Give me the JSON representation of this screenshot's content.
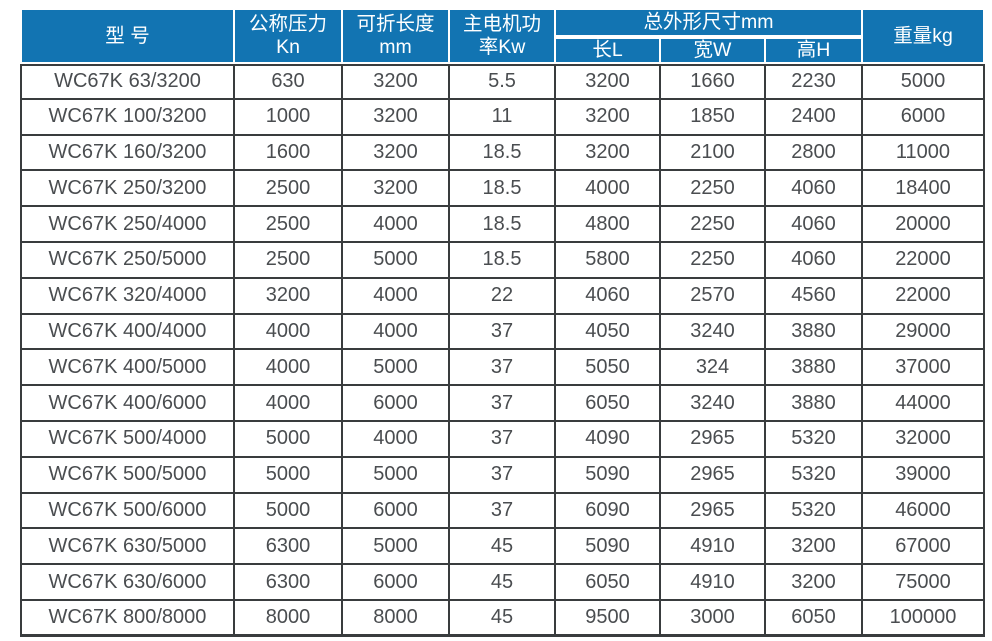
{
  "colors": {
    "header_bg": "#1274b2",
    "header_text": "#ffffff",
    "body_text": "#4a4d50",
    "grid_line": "#393c3e",
    "row_bg": "#ffffff"
  },
  "table": {
    "headers": {
      "model": "型 号",
      "pressure_line1": "公称压力",
      "pressure_line2": "Kn",
      "fold_length_line1": "可折长度",
      "fold_length_line2": "mm",
      "motor_power_line1": "主电机功",
      "motor_power_line2": "率Kw",
      "dimensions_group": "总外形尺寸mm",
      "dim_length": "长L",
      "dim_width": "宽W",
      "dim_height": "高H",
      "weight": "重量kg"
    },
    "column_keys": [
      "model",
      "pressure-kn",
      "fold-length-mm",
      "motor-power-kw",
      "dim-length-l",
      "dim-width-w",
      "dim-height-h",
      "weight-kg"
    ],
    "rows": [
      [
        "WC67K 63/3200",
        "630",
        "3200",
        "5.5",
        "3200",
        "1660",
        "2230",
        "5000"
      ],
      [
        "WC67K 100/3200",
        "1000",
        "3200",
        "11",
        "3200",
        "1850",
        "2400",
        "6000"
      ],
      [
        "WC67K 160/3200",
        "1600",
        "3200",
        "18.5",
        "3200",
        "2100",
        "2800",
        "11000"
      ],
      [
        "WC67K 250/3200",
        "2500",
        "3200",
        "18.5",
        "4000",
        "2250",
        "4060",
        "18400"
      ],
      [
        "WC67K 250/4000",
        "2500",
        "4000",
        "18.5",
        "4800",
        "2250",
        "4060",
        "20000"
      ],
      [
        "WC67K 250/5000",
        "2500",
        "5000",
        "18.5",
        "5800",
        "2250",
        "4060",
        "22000"
      ],
      [
        "WC67K 320/4000",
        "3200",
        "4000",
        "22",
        "4060",
        "2570",
        "4560",
        "22000"
      ],
      [
        "WC67K 400/4000",
        "4000",
        "4000",
        "37",
        "4050",
        "3240",
        "3880",
        "29000"
      ],
      [
        "WC67K 400/5000",
        "4000",
        "5000",
        "37",
        "5050",
        "324",
        "3880",
        "37000"
      ],
      [
        "WC67K 400/6000",
        "4000",
        "6000",
        "37",
        "6050",
        "3240",
        "3880",
        "44000"
      ],
      [
        "WC67K 500/4000",
        "5000",
        "4000",
        "37",
        "4090",
        "2965",
        "5320",
        "32000"
      ],
      [
        "WC67K 500/5000",
        "5000",
        "5000",
        "37",
        "5090",
        "2965",
        "5320",
        "39000"
      ],
      [
        "WC67K 500/6000",
        "5000",
        "6000",
        "37",
        "6090",
        "2965",
        "5320",
        "46000"
      ],
      [
        "WC67K 630/5000",
        "6300",
        "5000",
        "45",
        "5090",
        "4910",
        "3200",
        "67000"
      ],
      [
        "WC67K 630/6000",
        "6300",
        "6000",
        "45",
        "6050",
        "4910",
        "3200",
        "75000"
      ],
      [
        "WC67K 800/8000",
        "8000",
        "8000",
        "45",
        "9500",
        "3000",
        "6050",
        "100000"
      ]
    ]
  }
}
